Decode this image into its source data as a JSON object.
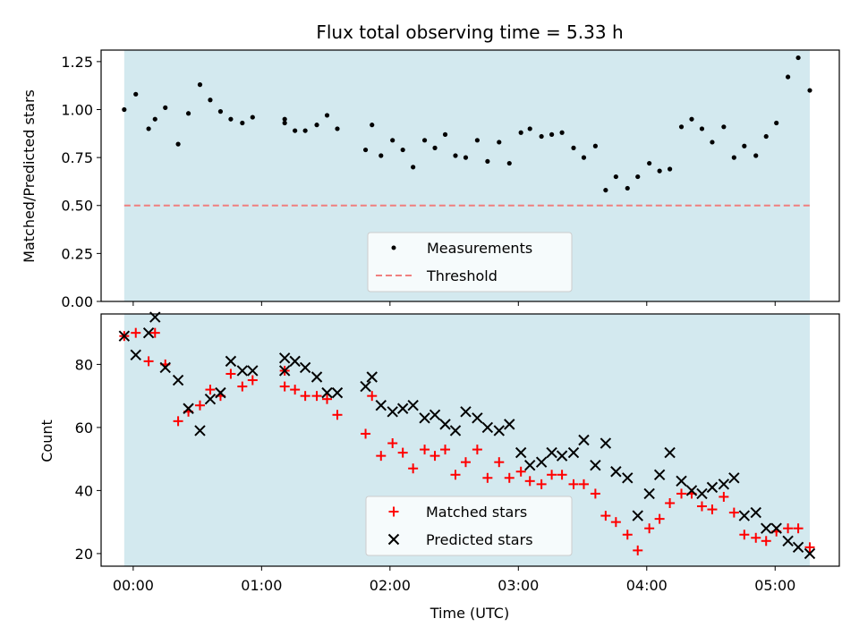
{
  "title": "Flux total observing time = 5.33 h",
  "colors": {
    "band": "#d3e9ef",
    "measurement": "#000000",
    "threshold": "#f07f7f",
    "matched": "#ff0000",
    "predicted": "#000000"
  },
  "chart_data": [
    {
      "type": "scatter",
      "ylabel": "Matched/Predicted stars",
      "xlabel": "",
      "xlim": [
        -0.25,
        5.5
      ],
      "ylim": [
        0.0,
        1.31
      ],
      "band": [
        -0.07,
        5.27
      ],
      "yticks": [
        0.0,
        0.25,
        0.5,
        0.75,
        1.0,
        1.25
      ],
      "ytick_labels": [
        "0.00",
        "0.25",
        "0.50",
        "0.75",
        "1.00",
        "1.25"
      ],
      "threshold": 0.5,
      "legend_position": "lower center",
      "series": [
        {
          "name": "Measurements",
          "marker": "dot",
          "x": [
            -0.07,
            0.02,
            0.12,
            0.17,
            0.25,
            0.35,
            0.43,
            0.52,
            0.6,
            0.68,
            0.76,
            0.85,
            0.93,
            1.18,
            1.18,
            1.26,
            1.34,
            1.43,
            1.51,
            1.59,
            1.81,
            1.86,
            1.93,
            2.02,
            2.1,
            2.18,
            2.27,
            2.35,
            2.43,
            2.51,
            2.59,
            2.68,
            2.76,
            2.85,
            2.93,
            3.02,
            3.09,
            3.18,
            3.26,
            3.34,
            3.43,
            3.51,
            3.6,
            3.68,
            3.76,
            3.85,
            3.93,
            4.02,
            4.1,
            4.18,
            4.27,
            4.35,
            4.43,
            4.51,
            4.6,
            4.68,
            4.76,
            4.85,
            4.93,
            5.01,
            5.1,
            5.18,
            5.27
          ],
          "y": [
            1.0,
            1.08,
            0.9,
            0.95,
            1.01,
            0.82,
            0.98,
            1.13,
            1.05,
            0.99,
            0.95,
            0.93,
            0.96,
            0.95,
            0.93,
            0.89,
            0.89,
            0.92,
            0.97,
            0.9,
            0.79,
            0.92,
            0.76,
            0.84,
            0.79,
            0.7,
            0.84,
            0.8,
            0.87,
            0.76,
            0.75,
            0.84,
            0.73,
            0.83,
            0.72,
            0.88,
            0.9,
            0.86,
            0.87,
            0.88,
            0.8,
            0.75,
            0.81,
            0.58,
            0.65,
            0.59,
            0.65,
            0.72,
            0.68,
            0.69,
            0.91,
            0.95,
            0.9,
            0.83,
            0.91,
            0.75,
            0.81,
            0.76,
            0.86,
            0.93,
            1.17,
            1.27,
            1.1
          ]
        },
        {
          "name": "Threshold",
          "marker": "dashed-line"
        }
      ]
    },
    {
      "type": "scatter",
      "ylabel": "Count",
      "xlabel": "Time (UTC)",
      "xlim": [
        -0.25,
        5.5
      ],
      "ylim": [
        16,
        96
      ],
      "band": [
        -0.07,
        5.27
      ],
      "yticks": [
        20,
        40,
        60,
        80
      ],
      "ytick_labels": [
        "20",
        "40",
        "60",
        "80"
      ],
      "xticks": [
        0,
        1,
        2,
        3,
        4,
        5
      ],
      "xtick_labels": [
        "00:00",
        "01:00",
        "02:00",
        "03:00",
        "04:00",
        "05:00"
      ],
      "legend_position": "lower center",
      "series": [
        {
          "name": "Matched stars",
          "marker": "plus",
          "x": [
            -0.07,
            0.02,
            0.12,
            0.17,
            0.25,
            0.35,
            0.43,
            0.52,
            0.6,
            0.68,
            0.76,
            0.85,
            0.93,
            1.18,
            1.18,
            1.26,
            1.34,
            1.43,
            1.51,
            1.59,
            1.81,
            1.86,
            1.93,
            2.02,
            2.1,
            2.18,
            2.27,
            2.35,
            2.43,
            2.51,
            2.59,
            2.68,
            2.76,
            2.85,
            2.93,
            3.02,
            3.09,
            3.18,
            3.26,
            3.34,
            3.43,
            3.51,
            3.6,
            3.68,
            3.76,
            3.85,
            3.93,
            4.02,
            4.1,
            4.18,
            4.27,
            4.35,
            4.43,
            4.51,
            4.6,
            4.68,
            4.76,
            4.85,
            4.93,
            5.01,
            5.1,
            5.18,
            5.27
          ],
          "y": [
            89,
            90,
            81,
            90,
            80,
            62,
            65,
            67,
            72,
            70,
            77,
            73,
            75,
            78,
            73,
            72,
            70,
            70,
            69,
            64,
            58,
            70,
            51,
            55,
            52,
            47,
            53,
            51,
            53,
            45,
            49,
            53,
            44,
            49,
            44,
            46,
            43,
            42,
            45,
            45,
            42,
            42,
            39,
            32,
            30,
            26,
            21,
            28,
            31,
            36,
            39,
            39,
            35,
            34,
            38,
            33,
            26,
            25,
            24,
            27,
            28,
            28,
            22
          ]
        },
        {
          "name": "Predicted stars",
          "marker": "x",
          "x": [
            -0.07,
            0.02,
            0.12,
            0.17,
            0.25,
            0.35,
            0.43,
            0.52,
            0.6,
            0.68,
            0.76,
            0.85,
            0.93,
            1.18,
            1.18,
            1.26,
            1.34,
            1.43,
            1.51,
            1.59,
            1.81,
            1.86,
            1.93,
            2.02,
            2.1,
            2.18,
            2.27,
            2.35,
            2.43,
            2.51,
            2.59,
            2.68,
            2.76,
            2.85,
            2.93,
            3.02,
            3.09,
            3.18,
            3.26,
            3.34,
            3.43,
            3.51,
            3.6,
            3.68,
            3.76,
            3.85,
            3.93,
            4.02,
            4.1,
            4.18,
            4.27,
            4.35,
            4.43,
            4.51,
            4.6,
            4.68,
            4.76,
            4.85,
            4.93,
            5.01,
            5.1,
            5.18,
            5.27
          ],
          "y": [
            89,
            83,
            90,
            95,
            79,
            75,
            66,
            59,
            69,
            71,
            81,
            78,
            78,
            82,
            78,
            81,
            79,
            76,
            71,
            71,
            73,
            76,
            67,
            65,
            66,
            67,
            63,
            64,
            61,
            59,
            65,
            63,
            60,
            59,
            61,
            52,
            48,
            49,
            52,
            51,
            52,
            56,
            48,
            55,
            46,
            44,
            32,
            39,
            45,
            52,
            43,
            40,
            39,
            41,
            42,
            44,
            32,
            33,
            28,
            28,
            24,
            22,
            20
          ]
        }
      ]
    }
  ]
}
